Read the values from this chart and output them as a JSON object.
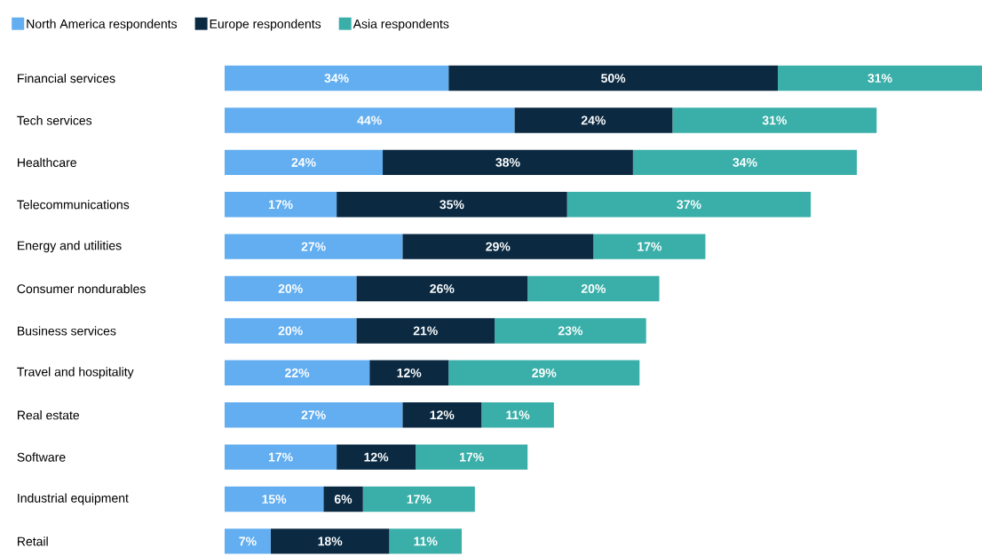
{
  "chart_data": {
    "type": "bar",
    "orientation": "horizontal",
    "stacked": true,
    "legend": "top",
    "categories": [
      "Financial services",
      "Tech services",
      "Healthcare",
      "Telecommunications",
      "Energy and utilities",
      "Consumer nondurables",
      "Business services",
      "Travel and hospitality",
      "Real estate",
      "Software",
      "Industrial equipment",
      "Retail"
    ],
    "series": [
      {
        "name": "North America respondents",
        "color": "#62aef0",
        "values": [
          34,
          44,
          24,
          17,
          27,
          20,
          20,
          22,
          27,
          17,
          15,
          7
        ],
        "value_labels": [
          "34%",
          "44%",
          "24%",
          "17%",
          "27%",
          "20%",
          "20%",
          "22%",
          "27%",
          "17%",
          "15%",
          "7%"
        ]
      },
      {
        "name": "Europe respondents",
        "color": "#0b2a42",
        "values": [
          50,
          24,
          38,
          35,
          29,
          26,
          21,
          12,
          12,
          12,
          6,
          18
        ],
        "value_labels": [
          "50%",
          "24%",
          "38%",
          "35%",
          "29%",
          "26%",
          "21%",
          "12%",
          "12%",
          "12%",
          "6%",
          "18%"
        ]
      },
      {
        "name": "Asia respondents",
        "color": "#3aafa9",
        "values": [
          31,
          31,
          34,
          37,
          17,
          20,
          23,
          29,
          11,
          17,
          17,
          11
        ],
        "value_labels": [
          "31%",
          "31%",
          "34%",
          "37%",
          "17%",
          "20%",
          "23%",
          "29%",
          "11%",
          "17%",
          "17%",
          "11%"
        ]
      }
    ]
  }
}
